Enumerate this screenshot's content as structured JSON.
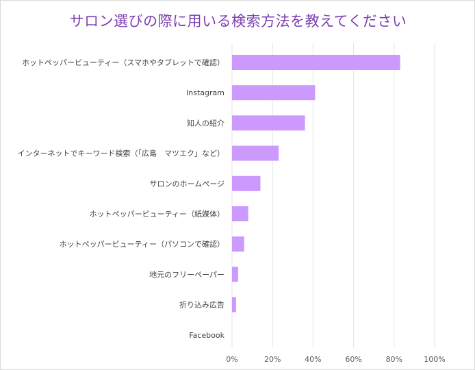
{
  "chart_data": {
    "type": "bar",
    "orientation": "horizontal",
    "title": "サロン選びの際に用いる検索方法を教えてください",
    "xlabel": "",
    "ylabel": "",
    "xlim": [
      0,
      100
    ],
    "x_ticks": [
      "0%",
      "20%",
      "40%",
      "60%",
      "80%",
      "100%"
    ],
    "grid": true,
    "legend": "none",
    "bar_color": "#cc99ff",
    "title_color": "#7b3fb0",
    "categories": [
      "ホットペッパービューティー（スマホやタブレットで確認）",
      "Instagram",
      "知人の紹介",
      "インターネットでキーワード検索（「広島　マツエク」など）",
      "サロンのホームページ",
      "ホットペッパービューティー（紙媒体）",
      "ホットペッパービューティー（パソコンで確認）",
      "地元のフリーペーパー",
      "折り込み広告",
      "Facebook"
    ],
    "values": [
      83,
      41,
      36,
      23,
      14,
      8,
      6,
      3,
      2,
      0
    ]
  }
}
